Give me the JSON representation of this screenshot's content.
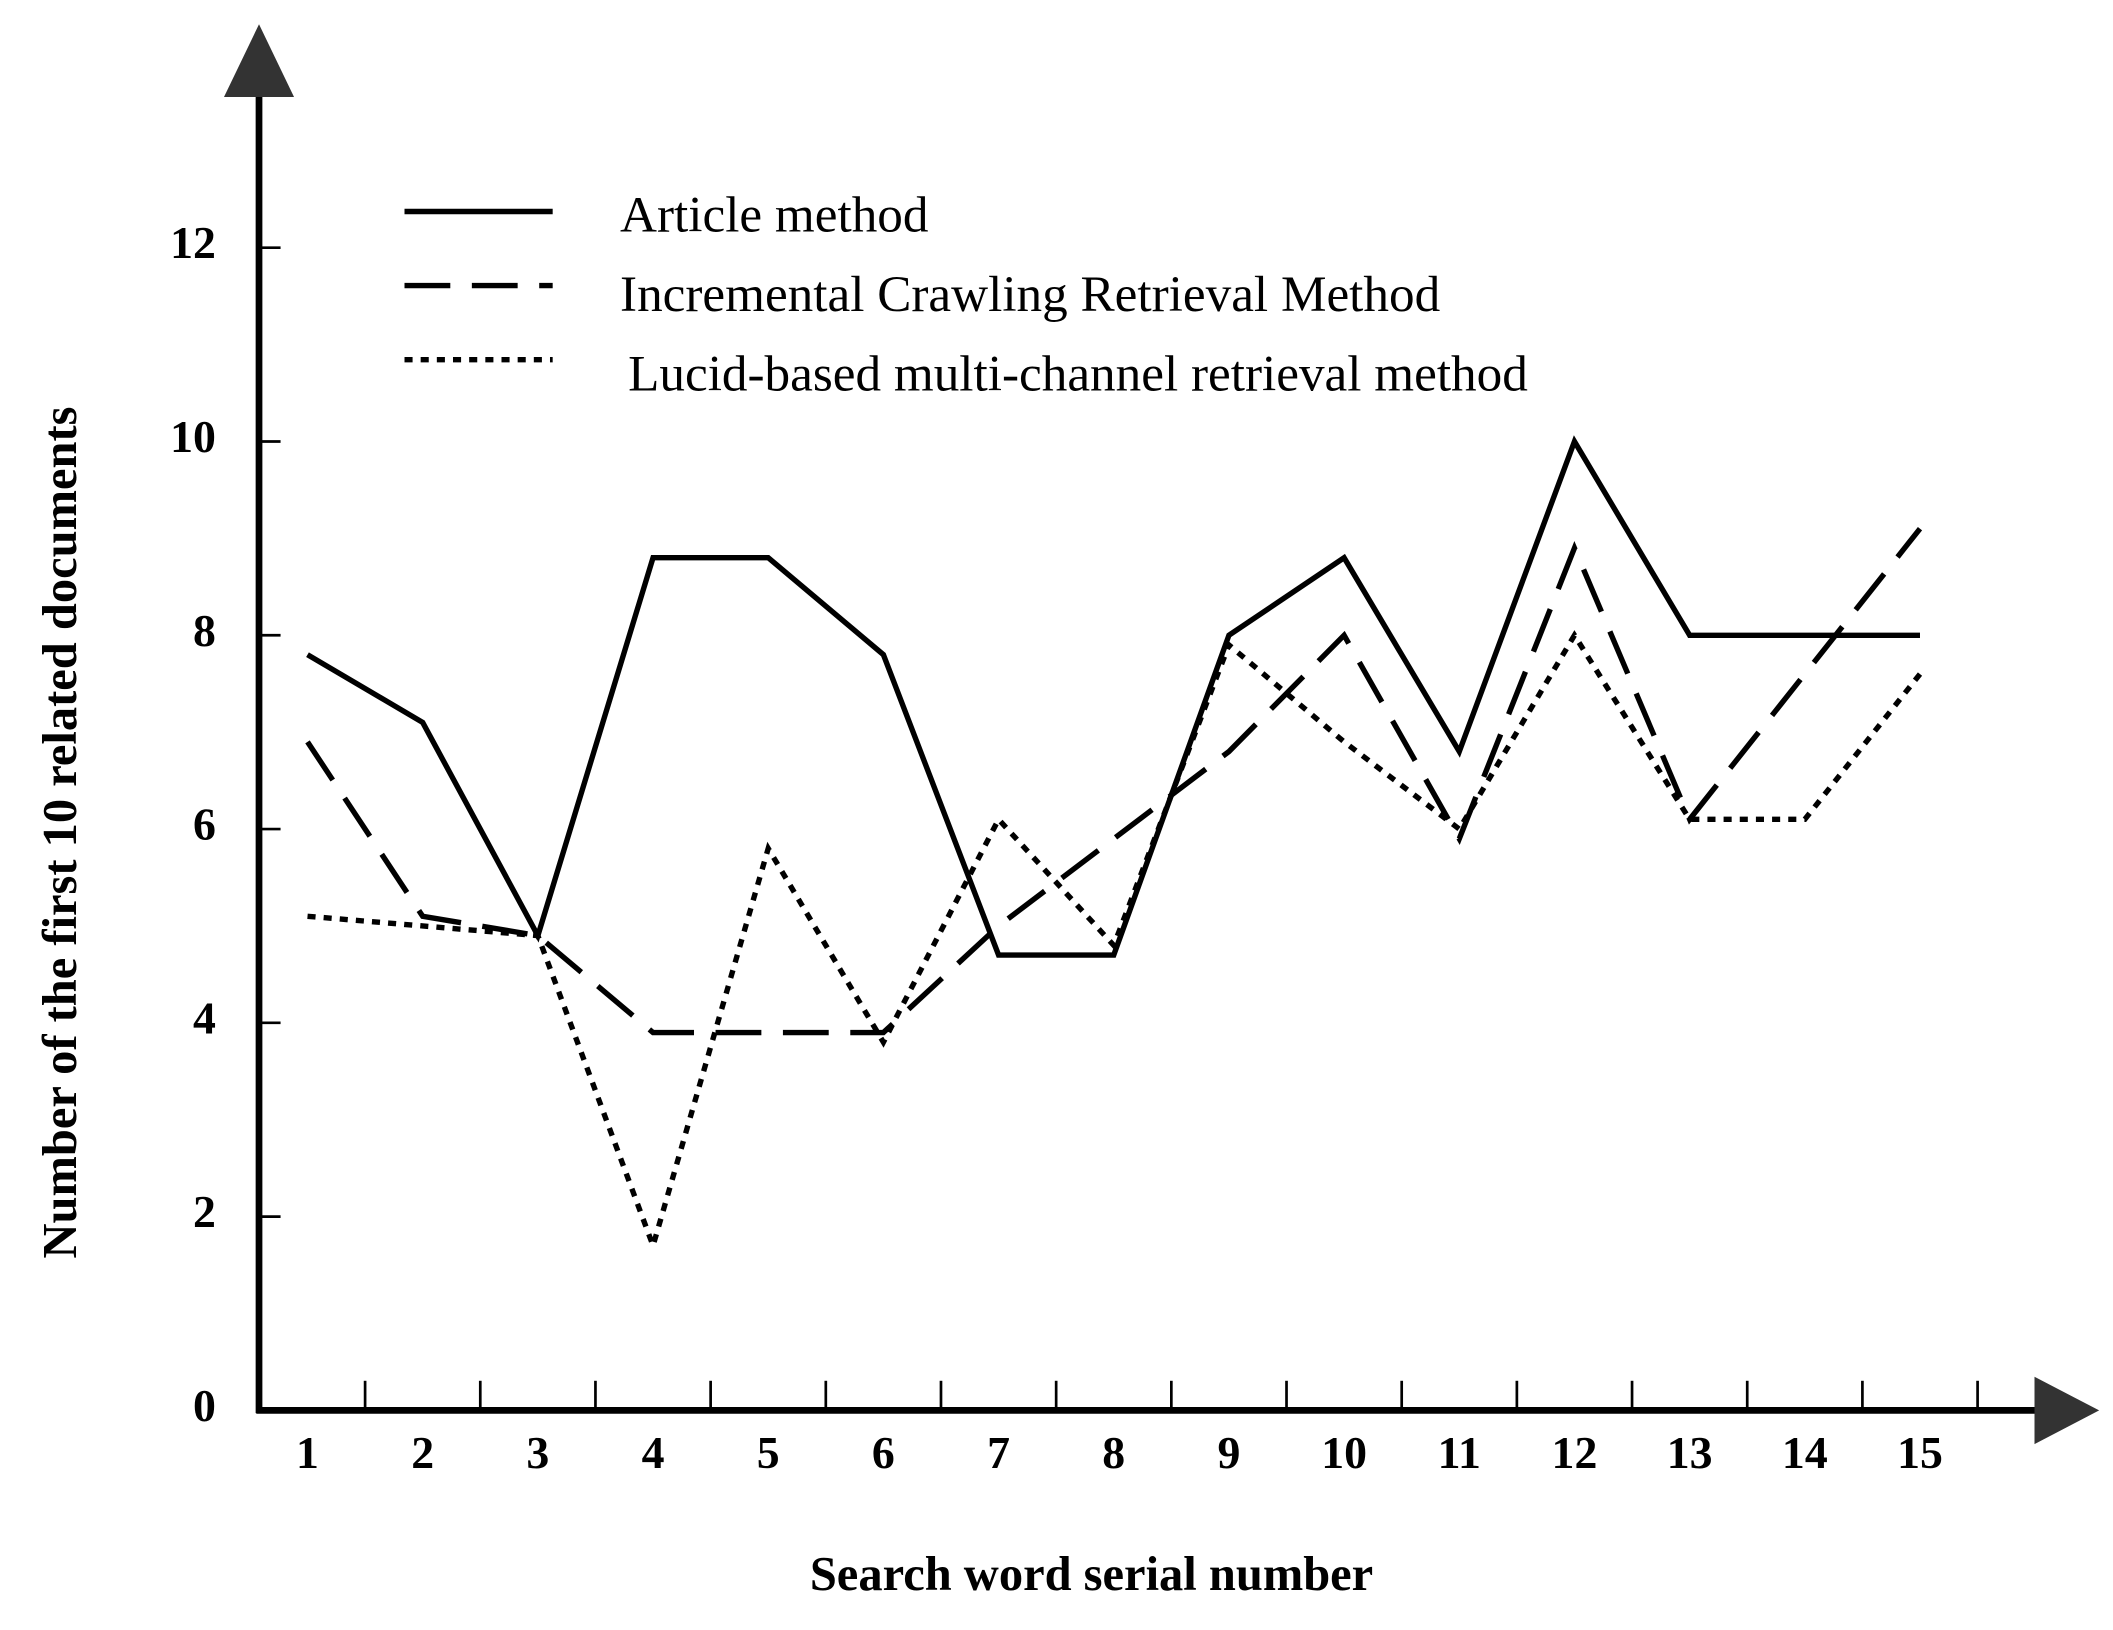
{
  "chart_data": {
    "type": "line",
    "x_label": "Search word serial number",
    "y_label": "Number of the first 10 related documents",
    "categories": [
      "1",
      "2",
      "3",
      "4",
      "5",
      "6",
      "7",
      "8",
      "9",
      "10",
      "11",
      "12",
      "13",
      "14",
      "15"
    ],
    "series": [
      {
        "name": "Article method",
        "color": "#000000",
        "dash": "solid",
        "values": [
          7.8,
          7.1,
          4.9,
          8.8,
          8.8,
          7.8,
          4.7,
          4.7,
          8.0,
          8.8,
          6.8,
          10.0,
          8.0,
          8.0,
          8.0
        ]
      },
      {
        "name": "Incremental Crawling Retrieval Method",
        "color": "#000000",
        "dash": "dashed",
        "values": [
          6.9,
          5.1,
          4.9,
          3.9,
          3.9,
          3.9,
          5.0,
          5.9,
          6.8,
          8.0,
          5.9,
          8.9,
          6.1,
          7.6,
          9.1
        ]
      },
      {
        "name": "Lucid-based multi-channel retrieval method",
        "color": "#000000",
        "dash": "dotted",
        "values": [
          5.1,
          5.0,
          4.9,
          1.7,
          5.8,
          3.8,
          6.1,
          4.8,
          7.9,
          6.9,
          6.0,
          8.0,
          6.1,
          6.1,
          7.6
        ]
      }
    ],
    "ylim": [
      0,
      14
    ],
    "yticks": [
      0,
      2,
      4,
      6,
      8,
      10,
      12
    ],
    "grid": false
  }
}
